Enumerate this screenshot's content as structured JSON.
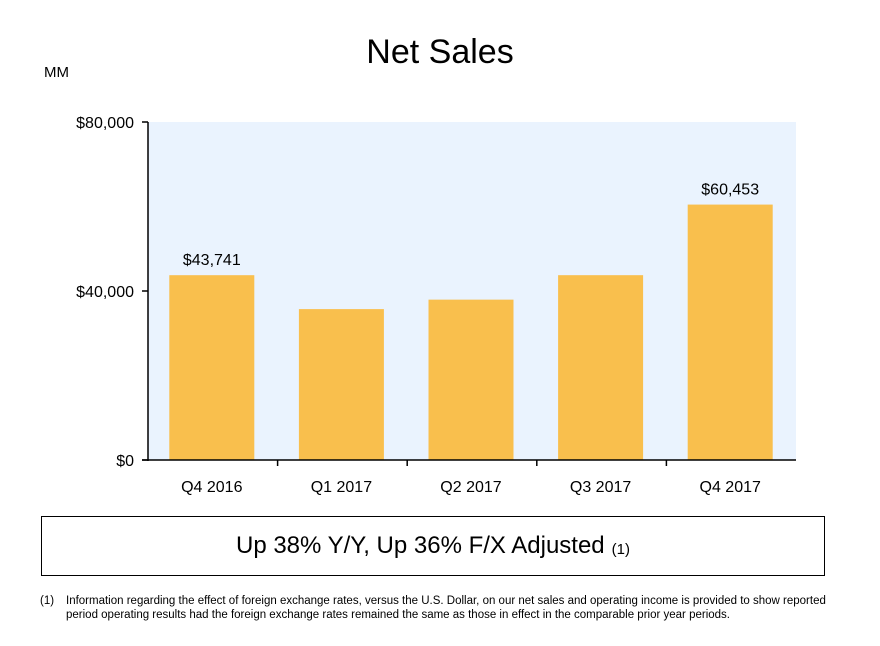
{
  "unit_label": "MM",
  "summary": {
    "text": "Up 38% Y/Y, Up 36% F/X Adjusted",
    "note": "(1)"
  },
  "footnote": {
    "marker": "(1)",
    "text": "Information regarding the effect of foreign exchange rates, versus the U.S. Dollar, on our net sales and operating income is provided to show reported period operating results had the foreign exchange rates remained the same as those in effect in the comparable prior year periods."
  },
  "colors": {
    "bar": "#F9BF4D",
    "plot_background": "#EAF3FE",
    "axis": "#000000"
  },
  "chart_data": {
    "type": "bar",
    "title": "Net Sales",
    "xlabel": "",
    "ylabel": "",
    "categories": [
      "Q4 2016",
      "Q1 2017",
      "Q2 2017",
      "Q3 2017",
      "Q4 2017"
    ],
    "values": [
      43741,
      35714,
      37955,
      43744,
      60453
    ],
    "data_labels": [
      "$43,741",
      "",
      "",
      "",
      "$60,453"
    ],
    "ylim": [
      0,
      80000
    ],
    "yticks": [
      0,
      40000,
      80000
    ],
    "ytick_labels": [
      "$0",
      "$40,000",
      "$80,000"
    ],
    "grid": false,
    "legend": "none"
  }
}
